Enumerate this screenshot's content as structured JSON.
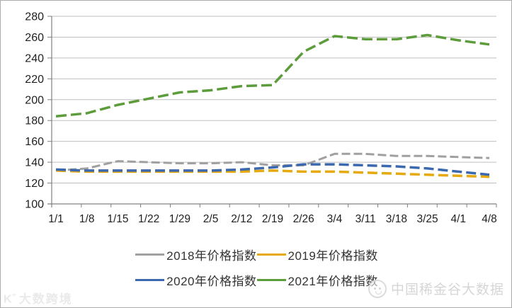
{
  "chart_data": {
    "type": "line",
    "categories": [
      "1/1",
      "1/8",
      "1/15",
      "1/22",
      "1/29",
      "2/5",
      "2/12",
      "2/19",
      "2/26",
      "3/4",
      "3/11",
      "3/18",
      "3/25",
      "4/1",
      "4/8"
    ],
    "series": [
      {
        "name": "2018年价格指数",
        "color": "#A0A0A0",
        "dash": "12 5",
        "width": 3,
        "values": [
          132,
          134,
          141,
          140,
          139,
          139,
          140,
          137,
          137,
          148,
          148,
          146,
          146,
          145,
          144
        ]
      },
      {
        "name": "2019年价格指数",
        "color": "#E6A90E",
        "dash": "14 6",
        "width": 3.5,
        "values": [
          132,
          131,
          131,
          131,
          131,
          131,
          131,
          132,
          131,
          131,
          130,
          129,
          128,
          127,
          126
        ]
      },
      {
        "name": "2020年价格指数",
        "color": "#3B68AE",
        "dash": "14 6",
        "width": 3.5,
        "values": [
          133,
          132,
          132,
          132,
          132,
          132,
          133,
          135,
          138,
          138,
          137,
          136,
          134,
          131,
          128
        ]
      },
      {
        "name": "2021年价格指数",
        "color": "#5C9C3A",
        "dash": "15 6",
        "width": 3.5,
        "values": [
          184,
          187,
          195,
          201,
          207,
          209,
          213,
          214,
          246,
          261,
          258,
          258,
          262,
          257,
          253
        ]
      }
    ],
    "title": "",
    "xlabel": "",
    "ylabel": "",
    "ylim": [
      100,
      280
    ],
    "ytick_step": 20,
    "grid": "horizontal-only",
    "legend_position": "bottom-two-rows",
    "colors": {
      "grid": "#BFBFBF",
      "axis": "#808080",
      "tick_labels": "#1F1F1F"
    }
  },
  "legend": {
    "rows": [
      [
        "2018年价格指数",
        "2019年价格指数"
      ],
      [
        "2020年价格指数",
        "2021年价格指数"
      ]
    ]
  },
  "watermarks": {
    "bottom_right": {
      "logo_icon": "panda-badge-icon",
      "text": "中国稀金谷大数据"
    },
    "bottom_left": {
      "logo_icon": "k-dots-logo-icon",
      "text": "大数跨境",
      "logo_glyph": "K",
      "logo_dots": "°°"
    }
  }
}
